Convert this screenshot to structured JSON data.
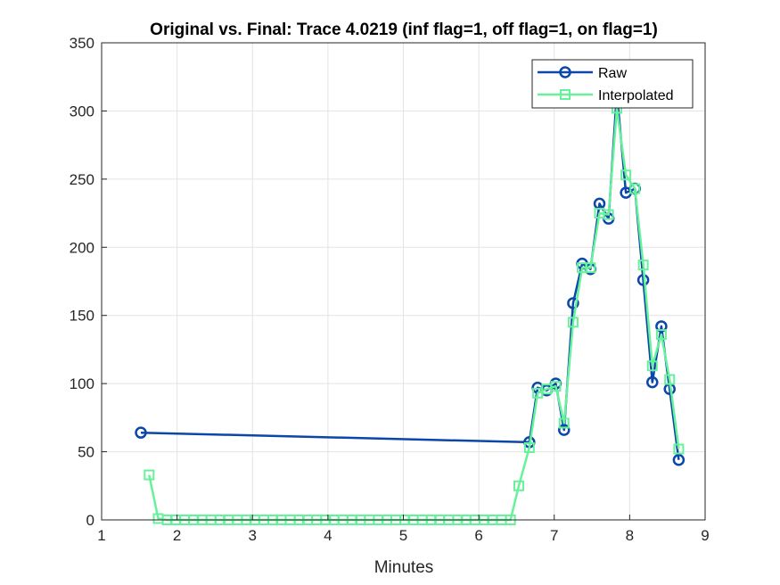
{
  "chart_data": {
    "type": "line",
    "title": "Original vs. Final: Trace 4.0219 (inf flag=1, off flag=1, on flag=1)",
    "xlabel": "Minutes",
    "ylabel": "",
    "xlim": [
      1,
      9
    ],
    "ylim": [
      0,
      350
    ],
    "x_ticks": [
      "1",
      "2",
      "3",
      "4",
      "5",
      "6",
      "7",
      "8",
      "9"
    ],
    "y_ticks": [
      "0",
      "50",
      "100",
      "150",
      "200",
      "250",
      "300",
      "350"
    ],
    "grid": true,
    "legend_position": "top-right",
    "series": [
      {
        "name": "Raw",
        "color": "#0b47a8",
        "marker": "circle",
        "x": [
          1.52,
          6.67,
          6.78,
          6.9,
          7.02,
          7.13,
          7.25,
          7.37,
          7.48,
          7.6,
          7.72,
          7.83,
          7.95,
          8.07,
          8.18,
          8.3,
          8.42,
          8.53,
          8.65
        ],
        "y": [
          64,
          57,
          97,
          95,
          100,
          66,
          159,
          188,
          184,
          232,
          221,
          313,
          240,
          243,
          176,
          101,
          142,
          96,
          44
        ]
      },
      {
        "name": "Interpolated",
        "color": "#66f29a",
        "marker": "square",
        "x": [
          1.63,
          1.75,
          1.87,
          1.98,
          2.1,
          2.22,
          2.33,
          2.45,
          2.57,
          2.68,
          2.8,
          2.92,
          3.03,
          3.15,
          3.27,
          3.38,
          3.5,
          3.62,
          3.73,
          3.85,
          3.97,
          4.08,
          4.2,
          4.32,
          4.43,
          4.55,
          4.67,
          4.78,
          4.9,
          5.02,
          5.13,
          5.25,
          5.37,
          5.48,
          5.6,
          5.72,
          5.83,
          5.95,
          6.07,
          6.18,
          6.3,
          6.42,
          6.53,
          6.67,
          6.78,
          6.9,
          7.02,
          7.13,
          7.25,
          7.37,
          7.48,
          7.6,
          7.72,
          7.83,
          7.95,
          8.07,
          8.18,
          8.3,
          8.42,
          8.53,
          8.65
        ],
        "y": [
          33,
          1,
          0,
          0,
          0,
          0,
          0,
          0,
          0,
          0,
          0,
          0,
          0,
          0,
          0,
          0,
          0,
          0,
          0,
          0,
          0,
          0,
          0,
          0,
          0,
          0,
          0,
          0,
          0,
          0,
          0,
          0,
          0,
          0,
          0,
          0,
          0,
          0,
          0,
          0,
          0,
          0,
          25,
          53,
          93,
          96,
          98,
          71,
          145,
          185,
          185,
          225,
          224,
          302,
          253,
          243,
          187,
          113,
          136,
          103,
          52
        ]
      }
    ]
  }
}
